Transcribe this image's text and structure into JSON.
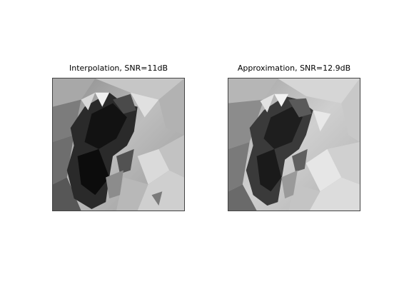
{
  "panels": [
    {
      "title": "Interpolation, SNR=11dB"
    },
    {
      "title": "Approximation, SNR=12.9dB"
    }
  ]
}
